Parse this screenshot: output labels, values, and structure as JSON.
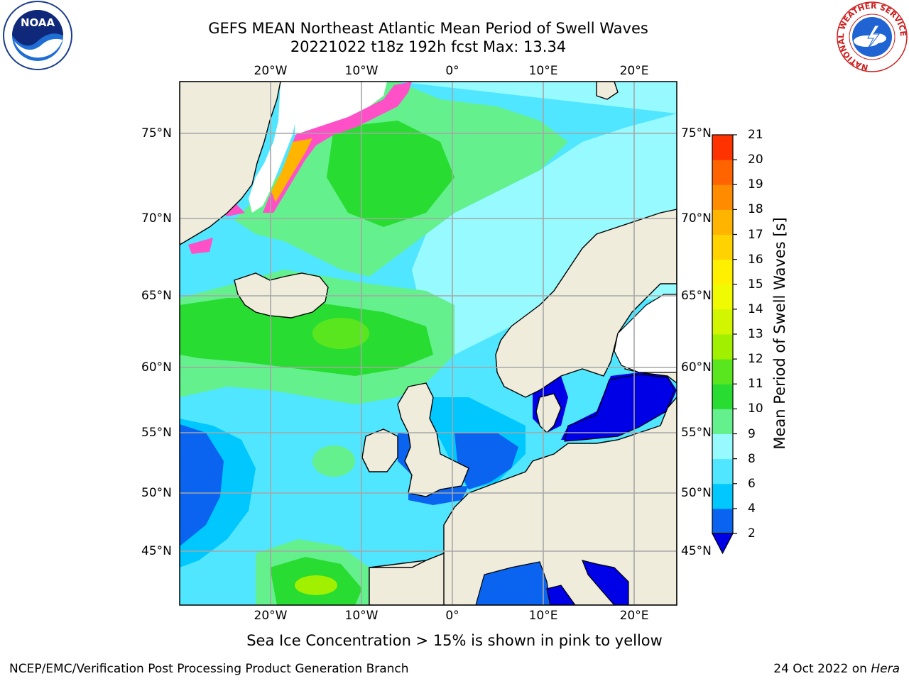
{
  "title_line1": "GEFS MEAN Northeast Atlantic Mean Period of Swell Waves",
  "title_line2": "20221022 t18z 192h fcst   Max: 13.34",
  "lon_labels": [
    "20°W",
    "10°W",
    "0°",
    "10°E",
    "20°E"
  ],
  "lat_labels": [
    "75°N",
    "70°N",
    "65°N",
    "60°N",
    "55°N",
    "50°N",
    "45°N"
  ],
  "colorbar": {
    "label": "Mean Period of Swell Waves [s]",
    "ticks": [
      "2",
      "4",
      "6",
      "8",
      "9",
      "10",
      "11",
      "12",
      "13",
      "14",
      "15",
      "16",
      "17",
      "18",
      "19",
      "20",
      "21"
    ],
    "colors": [
      "#0a64f0",
      "#00c8ff",
      "#50e6ff",
      "#96faff",
      "#64f08c",
      "#28dc32",
      "#5ae61e",
      "#a0f000",
      "#d2f500",
      "#f0fa00",
      "#fff000",
      "#ffd200",
      "#ffb400",
      "#ff8c00",
      "#ff6400",
      "#ff3200"
    ],
    "under_color": "#0000e6"
  },
  "note": "Sea Ice Concentration > 15% is shown in pink to yellow",
  "credit": "NCEP/EMC/Verification Post Processing Product Generation Branch",
  "date_prefix": "24 Oct 2022 on",
  "date_machine": "Hera",
  "logos": {
    "noaa_text": "NOAA",
    "nws_text": "NATIONAL WEATHER SERVICE"
  }
}
